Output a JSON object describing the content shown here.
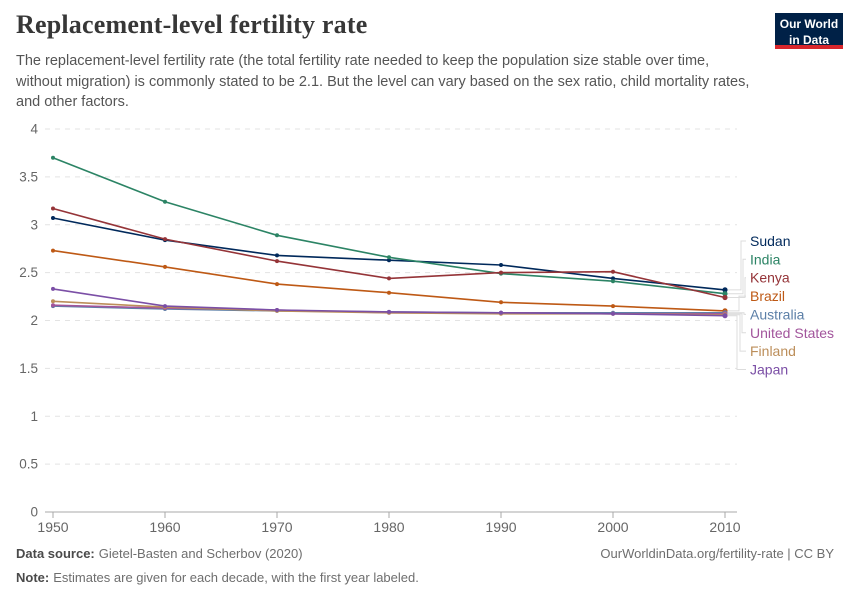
{
  "header": {
    "title": "Replacement-level fertility rate",
    "subtitle": "The replacement-level fertility rate (the total fertility rate needed to keep the population size stable over time, without migration) is commonly stated to be 2.1. But the level can vary based on the sex ratio, child mortality rates, and other factors.",
    "logo": {
      "line1": "Our World",
      "line2": "in Data",
      "bg_color": "#002147",
      "accent_color": "#d8262c"
    }
  },
  "chart_data": {
    "type": "line",
    "title": "Replacement-level fertility rate",
    "x": [
      1950,
      1960,
      1970,
      1980,
      1990,
      2000,
      2010
    ],
    "series": [
      {
        "name": "Sudan",
        "color": "#00295B",
        "values": [
          3.07,
          2.84,
          2.68,
          2.63,
          2.58,
          2.44,
          2.32
        ]
      },
      {
        "name": "India",
        "color": "#2C8465",
        "values": [
          3.7,
          3.24,
          2.89,
          2.66,
          2.49,
          2.41,
          2.28
        ]
      },
      {
        "name": "Kenya",
        "color": "#953438",
        "values": [
          3.17,
          2.85,
          2.62,
          2.44,
          2.5,
          2.51,
          2.24
        ]
      },
      {
        "name": "Brazil",
        "color": "#BE5915",
        "values": [
          2.73,
          2.56,
          2.38,
          2.29,
          2.19,
          2.15,
          2.1
        ]
      },
      {
        "name": "Australia",
        "color": "#5C7FA7",
        "values": [
          2.15,
          2.12,
          2.1,
          2.09,
          2.08,
          2.08,
          2.08
        ]
      },
      {
        "name": "United States",
        "color": "#A2559C",
        "values": [
          2.16,
          2.13,
          2.11,
          2.08,
          2.08,
          2.07,
          2.07
        ]
      },
      {
        "name": "Finland",
        "color": "#BC8E5A",
        "values": [
          2.2,
          2.14,
          2.1,
          2.08,
          2.07,
          2.07,
          2.06
        ]
      },
      {
        "name": "Japan",
        "color": "#7B4FA6",
        "values": [
          2.33,
          2.15,
          2.11,
          2.09,
          2.08,
          2.07,
          2.05
        ]
      }
    ],
    "xlabel": "",
    "ylabel": "",
    "ylim": [
      0,
      4
    ],
    "yticks": [
      0,
      0.5,
      1,
      1.5,
      2,
      2.5,
      3,
      3.5,
      4
    ],
    "xticks": [
      1950,
      1960,
      1970,
      1980,
      1990,
      2000,
      2010
    ],
    "grid": "horizontal-dashed",
    "legend_position": "right",
    "grid_color": "#e3e3e3",
    "axis_color": "#a8a8a8",
    "tick_label_color": "#666666"
  },
  "footer": {
    "data_source_label": "Data source:",
    "data_source_value": "Gietel-Basten and Scherbov (2020)",
    "note_label": "Note:",
    "note_value": "Estimates are given for each decade, with the first year labeled.",
    "citation": "OurWorldinData.org/fertility-rate | CC BY"
  }
}
